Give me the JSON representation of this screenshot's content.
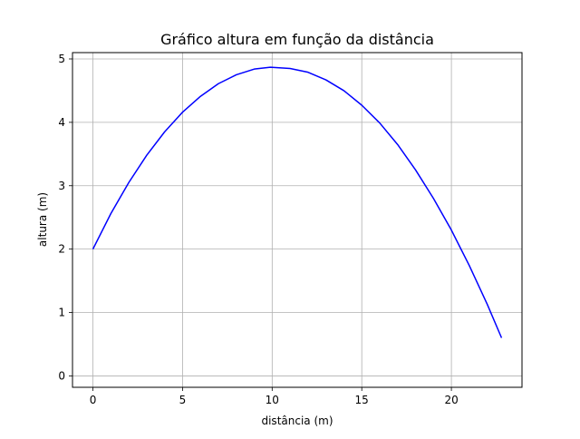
{
  "chart_data": {
    "type": "line",
    "title": "Gráfico altura em função da distância",
    "xlabel": "distância (m)",
    "ylabel": "altura (m)",
    "xlim": [
      -1.14,
      23.94
    ],
    "ylim": [
      -0.18,
      5.1
    ],
    "xticks": [
      0,
      5,
      10,
      15,
      20
    ],
    "yticks": [
      0,
      1,
      2,
      3,
      4,
      5
    ],
    "xtick_labels": [
      "0",
      "5",
      "10",
      "15",
      "20"
    ],
    "ytick_labels": [
      "0",
      "1",
      "2",
      "3",
      "4",
      "5"
    ],
    "grid": true,
    "legend": "none",
    "series": [
      {
        "color": "#0000ff",
        "x": [
          0,
          1,
          2,
          3,
          4,
          5,
          6,
          7,
          8,
          9,
          9.9,
          11,
          12,
          13,
          14,
          15,
          16,
          17,
          18,
          19,
          20,
          21,
          22,
          22.8
        ],
        "y": [
          2.0,
          2.56,
          3.05,
          3.48,
          3.85,
          4.16,
          4.41,
          4.61,
          4.75,
          4.84,
          4.87,
          4.85,
          4.79,
          4.67,
          4.5,
          4.27,
          3.99,
          3.65,
          3.25,
          2.8,
          2.3,
          1.74,
          1.13,
          0.6
        ]
      }
    ]
  }
}
